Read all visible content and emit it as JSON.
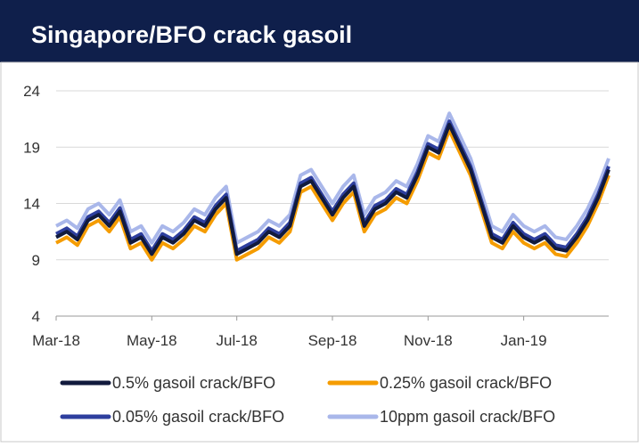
{
  "chart_data": {
    "type": "line",
    "title": "Singapore/BFO crack gasoil",
    "categories": [
      "Mar-18",
      null,
      null,
      null,
      null,
      null,
      null,
      null,
      null,
      "May-18",
      null,
      null,
      null,
      null,
      null,
      null,
      null,
      "Jul-18",
      null,
      null,
      null,
      null,
      null,
      null,
      null,
      null,
      "Sep-18",
      null,
      null,
      null,
      null,
      null,
      null,
      null,
      null,
      "Nov-18",
      null,
      null,
      null,
      null,
      null,
      null,
      null,
      null,
      "Jan-19",
      null,
      null,
      null,
      null,
      null,
      null,
      null,
      null
    ],
    "series": [
      {
        "name": "10ppm gasoil crack/BFO",
        "color": "#a9b7ea",
        "values": [
          12,
          12.5,
          11.8,
          13.5,
          14,
          13,
          14.3,
          11.5,
          12,
          10.5,
          12,
          11.5,
          12.3,
          13.5,
          13,
          14.5,
          15.5,
          10.5,
          11,
          11.5,
          12.5,
          12,
          13,
          16.5,
          17,
          15.5,
          14,
          15.5,
          16.5,
          13,
          14.5,
          15,
          16,
          15.5,
          17.5,
          20,
          19.5,
          22,
          20,
          18,
          15,
          12,
          11.5,
          13,
          12,
          11.5,
          12,
          11,
          10.8,
          12,
          13.5,
          15.5,
          18
        ]
      },
      {
        "name": "0.25% gasoil crack/BFO",
        "color": "#f59c00",
        "values": [
          10.5,
          11,
          10.3,
          12,
          12.5,
          11.5,
          12.8,
          10,
          10.5,
          9,
          10.5,
          10,
          10.8,
          12,
          11.5,
          13,
          14,
          9,
          9.5,
          10,
          11,
          10.5,
          11.5,
          15,
          15.5,
          14,
          12.5,
          14,
          15,
          11.5,
          13,
          13.5,
          14.5,
          14,
          16,
          18.5,
          18,
          20.5,
          18.5,
          16.5,
          13.5,
          10.5,
          10,
          11.5,
          10.5,
          10,
          10.5,
          9.5,
          9.3,
          10.5,
          12,
          14,
          16.5
        ]
      },
      {
        "name": "0.05% gasoil crack/BFO",
        "color": "#2e3f9e",
        "values": [
          11.3,
          11.8,
          11.1,
          12.8,
          13.3,
          12.3,
          13.6,
          10.8,
          11.3,
          9.8,
          11.3,
          10.8,
          11.6,
          12.8,
          12.3,
          13.8,
          14.8,
          9.8,
          10.3,
          10.8,
          11.8,
          11.3,
          12.3,
          15.8,
          16.3,
          14.8,
          13.3,
          14.8,
          15.8,
          12.3,
          13.8,
          14.3,
          15.3,
          14.8,
          16.8,
          19.3,
          18.8,
          21.3,
          19.3,
          17.3,
          14.3,
          11.3,
          10.8,
          12.3,
          11.3,
          10.8,
          11.3,
          10.3,
          10.1,
          11.3,
          12.8,
          14.8,
          17.3
        ]
      },
      {
        "name": "0.5% gasoil crack/BFO",
        "color": "#111a3d",
        "values": [
          11,
          11.5,
          10.8,
          12.5,
          13,
          12,
          13.3,
          10.5,
          11,
          9.5,
          11,
          10.5,
          11.3,
          12.5,
          12,
          13.5,
          14.5,
          9.5,
          10,
          10.5,
          11.5,
          11,
          12,
          15.5,
          16,
          14.5,
          13,
          14.5,
          15.5,
          12,
          13.5,
          14,
          15,
          14.5,
          16.5,
          19,
          18.5,
          21,
          19,
          17,
          14,
          11,
          10.5,
          12,
          11,
          10.5,
          11,
          10,
          9.8,
          11,
          12.5,
          14.5,
          17
        ]
      }
    ],
    "ylim": [
      4,
      24
    ],
    "yticks": [
      4,
      9,
      14,
      19,
      24
    ],
    "grid": true
  }
}
